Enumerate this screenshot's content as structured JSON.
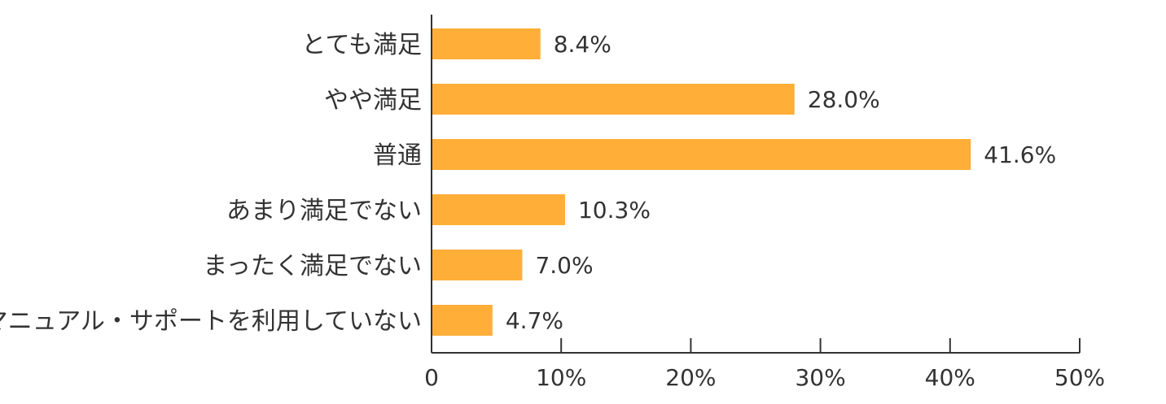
{
  "chart_data": {
    "type": "bar",
    "orientation": "horizontal",
    "title": "",
    "xlabel": "",
    "ylabel": "",
    "categories": [
      "とても満足",
      "やや満足",
      "普通",
      "あまり満足でない",
      "まったく満足でない",
      "マニュアル・サポートを利用していない"
    ],
    "values": [
      8.4,
      28.0,
      41.6,
      10.3,
      7.0,
      4.7
    ],
    "value_labels": [
      "8.4%",
      "28.0%",
      "41.6%",
      "10.3%",
      "7.0%",
      "4.7%"
    ],
    "xlim": [
      0,
      50
    ],
    "xticks": [
      0,
      10,
      20,
      30,
      40,
      50
    ],
    "xtick_labels": [
      "0",
      "10%",
      "20%",
      "30%",
      "40%",
      "50%"
    ],
    "grid": false,
    "legend": "none",
    "bar_color": "#FFAE38",
    "axis_color": "#333333"
  }
}
